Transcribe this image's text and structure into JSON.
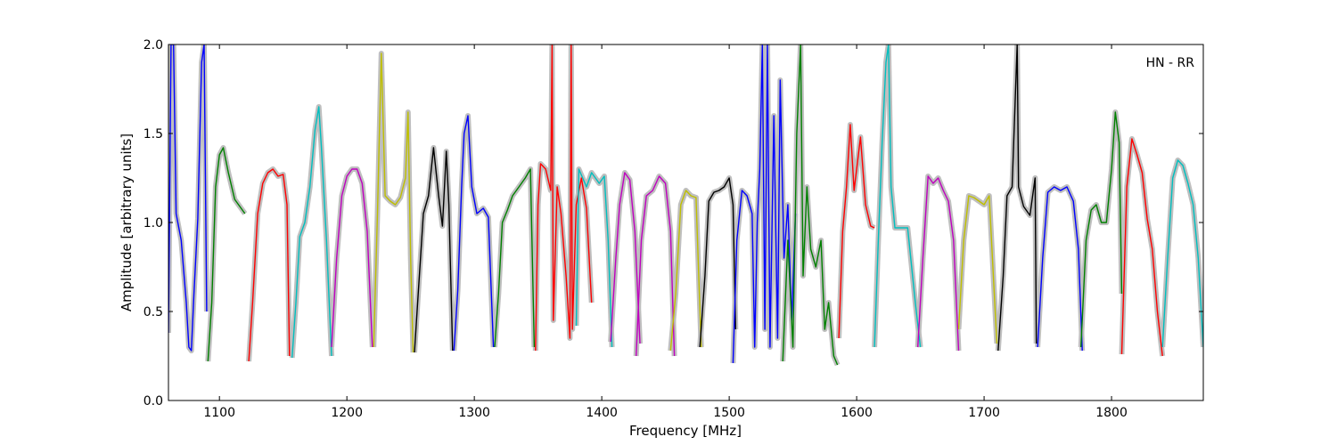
{
  "chart_data": {
    "type": "line",
    "annotation": "HN - RR",
    "xlabel": "Frequency [MHz]",
    "ylabel": "Amplitude [arbitrary units]",
    "xlim": [
      1060,
      1872
    ],
    "ylim": [
      0.0,
      2.0
    ],
    "xticks": [
      1100,
      1200,
      1300,
      1400,
      1500,
      1600,
      1700,
      1800
    ],
    "yticks": [
      0.0,
      0.5,
      1.0,
      1.5,
      2.0
    ],
    "xtick_labels": [
      "1100",
      "1200",
      "1300",
      "1400",
      "1500",
      "1600",
      "1700",
      "1800"
    ],
    "ytick_labels": [
      "0.0",
      "0.5",
      "1.0",
      "1.5",
      "2.0"
    ],
    "background_color": "#bfbfbf",
    "series": [
      {
        "color": "#0000ff",
        "points": [
          [
            1060,
            0.38
          ],
          [
            1062,
            2.0
          ],
          [
            1064,
            2.0
          ],
          [
            1066,
            1.05
          ],
          [
            1070,
            0.9
          ],
          [
            1074,
            0.55
          ],
          [
            1076,
            0.3
          ],
          [
            1078,
            0.28
          ],
          [
            1080,
            0.6
          ],
          [
            1083,
            1.02
          ],
          [
            1086,
            1.9
          ],
          [
            1088,
            2.0
          ],
          [
            1090,
            0.5
          ]
        ]
      },
      {
        "color": "#008000",
        "points": [
          [
            1091,
            0.22
          ],
          [
            1094,
            0.55
          ],
          [
            1097,
            1.2
          ],
          [
            1100,
            1.38
          ],
          [
            1103,
            1.42
          ],
          [
            1107,
            1.28
          ],
          [
            1112,
            1.13
          ],
          [
            1117,
            1.08
          ],
          [
            1120,
            1.05
          ]
        ]
      },
      {
        "color": "#ff0000",
        "points": [
          [
            1123,
            0.22
          ],
          [
            1126,
            0.55
          ],
          [
            1130,
            1.05
          ],
          [
            1134,
            1.22
          ],
          [
            1138,
            1.28
          ],
          [
            1142,
            1.3
          ],
          [
            1146,
            1.26
          ],
          [
            1150,
            1.27
          ],
          [
            1153,
            1.1
          ],
          [
            1155,
            0.25
          ]
        ]
      },
      {
        "color": "#00bfbf",
        "points": [
          [
            1157,
            0.24
          ],
          [
            1160,
            0.55
          ],
          [
            1163,
            0.92
          ],
          [
            1167,
            1.0
          ],
          [
            1171,
            1.2
          ],
          [
            1175,
            1.52
          ],
          [
            1178,
            1.65
          ],
          [
            1180,
            1.42
          ],
          [
            1184,
            0.9
          ],
          [
            1188,
            0.25
          ]
        ]
      },
      {
        "color": "#bf00bf",
        "points": [
          [
            1188,
            0.3
          ],
          [
            1192,
            0.8
          ],
          [
            1196,
            1.15
          ],
          [
            1200,
            1.26
          ],
          [
            1204,
            1.3
          ],
          [
            1208,
            1.3
          ],
          [
            1212,
            1.22
          ],
          [
            1216,
            0.95
          ],
          [
            1220,
            0.3
          ]
        ]
      },
      {
        "color": "#bfbf00",
        "points": [
          [
            1221,
            0.3
          ],
          [
            1224,
            1.05
          ],
          [
            1227,
            1.95
          ],
          [
            1230,
            1.15
          ],
          [
            1234,
            1.12
          ],
          [
            1238,
            1.1
          ],
          [
            1242,
            1.14
          ],
          [
            1246,
            1.25
          ],
          [
            1248,
            1.62
          ],
          [
            1250,
            0.8
          ],
          [
            1252,
            0.27
          ]
        ]
      },
      {
        "color": "#000000",
        "points": [
          [
            1253,
            0.27
          ],
          [
            1256,
            0.6
          ],
          [
            1260,
            1.05
          ],
          [
            1264,
            1.15
          ],
          [
            1268,
            1.42
          ],
          [
            1272,
            1.15
          ],
          [
            1275,
            0.98
          ],
          [
            1278,
            1.4
          ],
          [
            1280,
            1.1
          ],
          [
            1283,
            0.28
          ]
        ]
      },
      {
        "color": "#0000ff",
        "points": [
          [
            1284,
            0.28
          ],
          [
            1287,
            0.62
          ],
          [
            1290,
            1.2
          ],
          [
            1292,
            1.5
          ],
          [
            1295,
            1.6
          ],
          [
            1298,
            1.2
          ],
          [
            1302,
            1.05
          ],
          [
            1307,
            1.08
          ],
          [
            1311,
            1.03
          ],
          [
            1315,
            0.3
          ]
        ]
      },
      {
        "color": "#008000",
        "points": [
          [
            1316,
            0.3
          ],
          [
            1319,
            0.6
          ],
          [
            1322,
            1.0
          ],
          [
            1326,
            1.07
          ],
          [
            1330,
            1.15
          ],
          [
            1335,
            1.2
          ],
          [
            1340,
            1.25
          ],
          [
            1344,
            1.3
          ],
          [
            1347,
            0.3
          ]
        ]
      },
      {
        "color": "#ff0000",
        "points": [
          [
            1348,
            0.28
          ],
          [
            1350,
            1.1
          ],
          [
            1352,
            1.33
          ],
          [
            1356,
            1.3
          ],
          [
            1360,
            1.18
          ],
          [
            1361,
            2.0
          ],
          [
            1362,
            0.45
          ],
          [
            1365,
            1.2
          ],
          [
            1368,
            1.05
          ],
          [
            1372,
            0.7
          ],
          [
            1375,
            0.35
          ],
          [
            1376,
            2.0
          ],
          [
            1377,
            0.4
          ],
          [
            1380,
            1.1
          ],
          [
            1384,
            1.25
          ],
          [
            1388,
            1.08
          ],
          [
            1392,
            0.55
          ]
        ]
      },
      {
        "color": "#00bfbf",
        "points": [
          [
            1380,
            0.42
          ],
          [
            1382,
            1.3
          ],
          [
            1388,
            1.2
          ],
          [
            1392,
            1.28
          ],
          [
            1398,
            1.22
          ],
          [
            1402,
            1.26
          ],
          [
            1405,
            0.9
          ],
          [
            1408,
            0.3
          ]
        ]
      },
      {
        "color": "#bf00bf",
        "points": [
          [
            1407,
            0.33
          ],
          [
            1411,
            0.8
          ],
          [
            1414,
            1.1
          ],
          [
            1418,
            1.28
          ],
          [
            1422,
            1.24
          ],
          [
            1426,
            0.95
          ],
          [
            1430,
            0.32
          ]
        ]
      },
      {
        "color": "#bf00bf",
        "points": [
          [
            1427,
            0.25
          ],
          [
            1431,
            0.9
          ],
          [
            1435,
            1.15
          ],
          [
            1440,
            1.18
          ],
          [
            1445,
            1.26
          ],
          [
            1450,
            1.22
          ],
          [
            1454,
            0.95
          ],
          [
            1457,
            0.25
          ]
        ]
      },
      {
        "color": "#bfbf00",
        "points": [
          [
            1454,
            0.28
          ],
          [
            1458,
            0.6
          ],
          [
            1462,
            1.1
          ],
          [
            1466,
            1.18
          ],
          [
            1470,
            1.15
          ],
          [
            1474,
            1.14
          ],
          [
            1478,
            0.3
          ]
        ]
      },
      {
        "color": "#000000",
        "points": [
          [
            1477,
            0.3
          ],
          [
            1481,
            0.7
          ],
          [
            1484,
            1.12
          ],
          [
            1488,
            1.17
          ],
          [
            1492,
            1.18
          ],
          [
            1496,
            1.2
          ],
          [
            1500,
            1.25
          ],
          [
            1503,
            1.1
          ],
          [
            1505,
            0.4
          ]
        ]
      },
      {
        "color": "#0000ff",
        "points": [
          [
            1503,
            0.21
          ],
          [
            1506,
            0.9
          ],
          [
            1510,
            1.18
          ],
          [
            1514,
            1.15
          ],
          [
            1518,
            1.05
          ],
          [
            1520,
            0.3
          ],
          [
            1522,
            1.0
          ],
          [
            1524,
            1.3
          ],
          [
            1526,
            2.0
          ],
          [
            1528,
            0.4
          ],
          [
            1530,
            2.0
          ],
          [
            1532,
            0.3
          ],
          [
            1535,
            1.6
          ],
          [
            1538,
            0.35
          ],
          [
            1540,
            1.8
          ],
          [
            1543,
            0.8
          ],
          [
            1546,
            1.1
          ],
          [
            1549,
            0.45
          ],
          [
            1552,
            1.05
          ]
        ]
      },
      {
        "color": "#008000",
        "points": [
          [
            1542,
            0.22
          ],
          [
            1546,
            0.9
          ],
          [
            1550,
            0.3
          ],
          [
            1553,
            1.5
          ],
          [
            1556,
            2.0
          ],
          [
            1558,
            0.7
          ],
          [
            1561,
            1.2
          ],
          [
            1564,
            0.85
          ],
          [
            1568,
            0.75
          ],
          [
            1572,
            0.9
          ],
          [
            1575,
            0.4
          ],
          [
            1578,
            0.55
          ],
          [
            1582,
            0.25
          ],
          [
            1585,
            0.2
          ]
        ]
      },
      {
        "color": "#ff0000",
        "points": [
          [
            1586,
            0.35
          ],
          [
            1589,
            0.95
          ],
          [
            1592,
            1.2
          ],
          [
            1595,
            1.55
          ],
          [
            1598,
            1.18
          ],
          [
            1600,
            1.3
          ],
          [
            1603,
            1.48
          ],
          [
            1607,
            1.1
          ],
          [
            1611,
            0.98
          ],
          [
            1614,
            0.97
          ]
        ]
      },
      {
        "color": "#00bfbf",
        "points": [
          [
            1614,
            0.3
          ],
          [
            1617,
            0.9
          ],
          [
            1620,
            1.45
          ],
          [
            1623,
            1.9
          ],
          [
            1625,
            2.0
          ],
          [
            1627,
            1.2
          ],
          [
            1630,
            0.97
          ],
          [
            1640,
            0.97
          ],
          [
            1646,
            0.55
          ],
          [
            1650,
            0.3
          ]
        ]
      },
      {
        "color": "#bf00bf",
        "points": [
          [
            1648,
            0.3
          ],
          [
            1652,
            0.8
          ],
          [
            1656,
            1.26
          ],
          [
            1660,
            1.22
          ],
          [
            1664,
            1.25
          ],
          [
            1668,
            1.18
          ],
          [
            1672,
            1.12
          ],
          [
            1676,
            0.9
          ],
          [
            1680,
            0.28
          ]
        ]
      },
      {
        "color": "#bfbf00",
        "points": [
          [
            1680,
            0.4
          ],
          [
            1684,
            0.9
          ],
          [
            1688,
            1.15
          ],
          [
            1692,
            1.14
          ],
          [
            1696,
            1.12
          ],
          [
            1700,
            1.1
          ],
          [
            1704,
            1.15
          ],
          [
            1708,
            0.6
          ],
          [
            1710,
            0.32
          ]
        ]
      },
      {
        "color": "#000000",
        "points": [
          [
            1711,
            0.28
          ],
          [
            1715,
            0.7
          ],
          [
            1718,
            1.15
          ],
          [
            1722,
            1.2
          ],
          [
            1726,
            2.0
          ],
          [
            1727,
            1.2
          ],
          [
            1731,
            1.09
          ],
          [
            1736,
            1.04
          ],
          [
            1740,
            1.25
          ],
          [
            1741,
            0.32
          ]
        ]
      },
      {
        "color": "#0000ff",
        "points": [
          [
            1742,
            0.3
          ],
          [
            1746,
            0.8
          ],
          [
            1750,
            1.17
          ],
          [
            1755,
            1.2
          ],
          [
            1760,
            1.18
          ],
          [
            1765,
            1.2
          ],
          [
            1770,
            1.12
          ],
          [
            1774,
            0.85
          ],
          [
            1777,
            0.28
          ]
        ]
      },
      {
        "color": "#008000",
        "points": [
          [
            1776,
            0.3
          ],
          [
            1780,
            0.9
          ],
          [
            1784,
            1.07
          ],
          [
            1788,
            1.1
          ],
          [
            1792,
            1.0
          ],
          [
            1796,
            1.0
          ],
          [
            1800,
            1.3
          ],
          [
            1803,
            1.62
          ],
          [
            1806,
            1.45
          ],
          [
            1808,
            0.6
          ]
        ]
      },
      {
        "color": "#ff0000",
        "points": [
          [
            1808,
            0.26
          ],
          [
            1812,
            1.2
          ],
          [
            1816,
            1.47
          ],
          [
            1820,
            1.38
          ],
          [
            1824,
            1.28
          ],
          [
            1828,
            1.02
          ],
          [
            1832,
            0.85
          ],
          [
            1836,
            0.5
          ],
          [
            1840,
            0.25
          ]
        ]
      },
      {
        "color": "#00bfbf",
        "points": [
          [
            1840,
            0.3
          ],
          [
            1844,
            0.8
          ],
          [
            1848,
            1.25
          ],
          [
            1852,
            1.35
          ],
          [
            1856,
            1.32
          ],
          [
            1860,
            1.22
          ],
          [
            1864,
            1.1
          ],
          [
            1868,
            0.8
          ],
          [
            1872,
            0.3
          ]
        ]
      }
    ]
  }
}
